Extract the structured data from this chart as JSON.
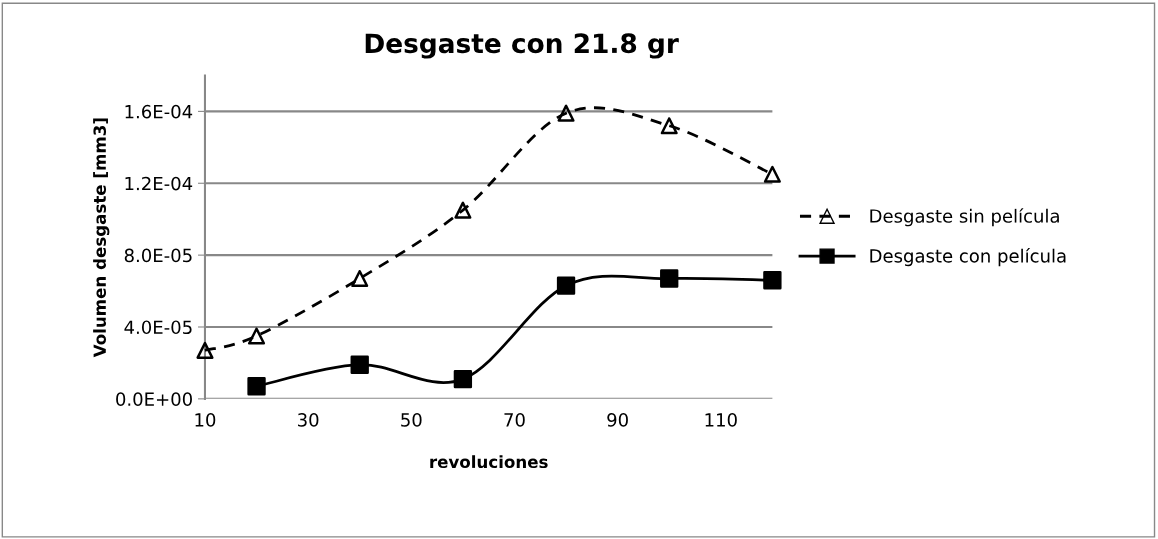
{
  "chart_data": {
    "type": "line",
    "title": "Desgaste con 21.8 gr",
    "xlabel": "revoluciones",
    "ylabel": "Volumen desgaste [mm3]",
    "series": [
      {
        "name": "Desgaste sin película",
        "color": "#000000",
        "line_style": "dashed",
        "marker": "triangle",
        "x": [
          10,
          20,
          40,
          60,
          80,
          100,
          120
        ],
        "values": [
          2.7e-05,
          3.5e-05,
          6.7e-05,
          0.000105,
          0.000159,
          0.000152,
          0.000125
        ]
      },
      {
        "name": "Desgaste con película",
        "color": "#000000",
        "line_style": "solid",
        "marker": "square",
        "x": [
          20,
          40,
          60,
          80,
          100,
          120
        ],
        "values": [
          7e-06,
          1.9e-05,
          1.1e-05,
          6.3e-05,
          6.7e-05,
          6.6e-05
        ]
      }
    ],
    "xlim": [
      10,
      120
    ],
    "xticks": [
      10,
      30,
      50,
      70,
      90,
      110
    ],
    "ylim": [
      0,
      0.00018
    ],
    "yticks": [
      {
        "value": 0,
        "label": "0.0E+00"
      },
      {
        "value": 4e-05,
        "label": "4.0E-05"
      },
      {
        "value": 8e-05,
        "label": "8.0E-05"
      },
      {
        "value": 0.00012,
        "label": "1.2E-04"
      },
      {
        "value": 0.00016,
        "label": "1.6E-04"
      }
    ],
    "grid": "y",
    "legend": "right"
  }
}
